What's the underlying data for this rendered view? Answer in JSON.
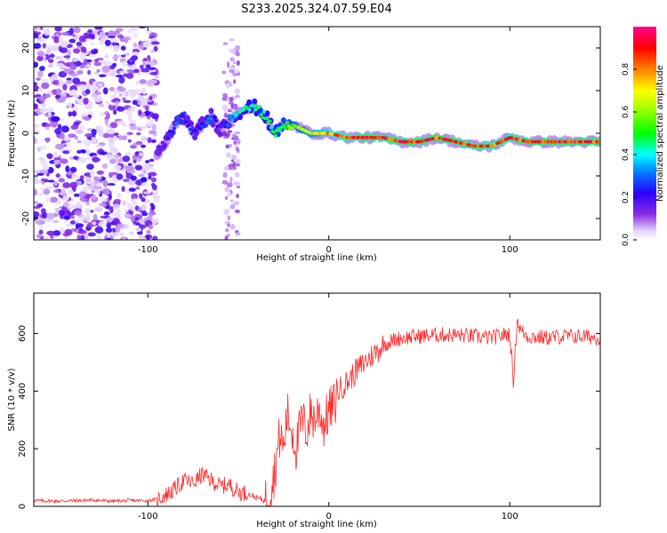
{
  "title": "S233.2025.324.07.59.E04",
  "chart_data": [
    {
      "type": "heatmap",
      "panel": "top",
      "xlabel": "Height of straight line (km)",
      "ylabel": "Frequency (Hz)",
      "xlim": [
        -163,
        150
      ],
      "ylim": [
        -25,
        25
      ],
      "xticks": [
        -100,
        0,
        100
      ],
      "yticks": [
        -20,
        -10,
        0,
        10,
        20
      ],
      "colorbar": {
        "label": "Normalized spectral amplitude",
        "range": [
          0,
          1
        ],
        "ticks": [
          "0.0",
          "0.2",
          "0.4",
          "0.6",
          "0.8"
        ]
      },
      "ridge": {
        "x": [
          -95,
          -90,
          -85,
          -80,
          -75,
          -70,
          -65,
          -60,
          -55,
          -50,
          -45,
          -40,
          -35,
          -30,
          -25,
          -20,
          -15,
          -10,
          -5,
          0,
          10,
          20,
          30,
          40,
          50,
          60,
          70,
          80,
          90,
          100,
          110,
          120,
          130,
          140,
          150
        ],
        "freq": [
          -5,
          -2,
          2,
          4,
          0,
          2,
          4,
          1,
          3,
          5,
          6,
          6,
          4,
          0,
          2,
          2,
          1,
          0,
          0,
          0,
          -1,
          -1,
          -1,
          -2,
          -2,
          -1,
          -2,
          -3,
          -3,
          -1,
          -2,
          -2,
          -2,
          -2,
          -2
        ],
        "amp": [
          0.15,
          0.2,
          0.35,
          0.3,
          0.25,
          0.3,
          0.35,
          0.2,
          0.35,
          0.45,
          0.5,
          0.55,
          0.5,
          0.55,
          0.6,
          0.65,
          0.7,
          0.75,
          0.8,
          0.85,
          0.95,
          1.0,
          1.0,
          1.0,
          1.0,
          1.0,
          1.0,
          0.95,
          0.95,
          0.95,
          1.0,
          1.0,
          1.0,
          1.0,
          1.0
        ]
      },
      "noise_region": {
        "x_range": [
          -163,
          -95
        ],
        "freq_range": [
          -25,
          25
        ]
      }
    },
    {
      "type": "line",
      "panel": "bottom",
      "xlabel": "Height of straight line (km)",
      "ylabel": "SNR (10 * v/v)",
      "xlim": [
        -163,
        150
      ],
      "ylim": [
        0,
        740
      ],
      "xticks": [
        -100,
        0,
        100
      ],
      "yticks": [
        0,
        200,
        400,
        600
      ],
      "color": "#ff2a2a",
      "series": [
        {
          "name": "SNR",
          "x": [
            -163,
            -150,
            -140,
            -130,
            -120,
            -110,
            -100,
            -95,
            -90,
            -85,
            -80,
            -75,
            -70,
            -65,
            -60,
            -55,
            -50,
            -45,
            -40,
            -35,
            -32,
            -30,
            -27,
            -25,
            -23,
            -20,
            -18,
            -15,
            -12,
            -10,
            -8,
            -5,
            -3,
            0,
            3,
            5,
            8,
            10,
            15,
            20,
            25,
            30,
            35,
            40,
            50,
            60,
            70,
            80,
            90,
            100,
            102,
            104,
            106,
            110,
            120,
            130,
            140,
            150
          ],
          "y": [
            20,
            18,
            20,
            22,
            18,
            20,
            20,
            25,
            40,
            60,
            90,
            80,
            110,
            90,
            70,
            75,
            50,
            45,
            30,
            20,
            70,
            120,
            250,
            200,
            320,
            260,
            200,
            300,
            260,
            330,
            300,
            340,
            280,
            330,
            350,
            400,
            420,
            430,
            470,
            500,
            530,
            560,
            575,
            585,
            590,
            595,
            595,
            590,
            585,
            600,
            430,
            650,
            610,
            590,
            585,
            590,
            590,
            585
          ]
        }
      ]
    }
  ]
}
